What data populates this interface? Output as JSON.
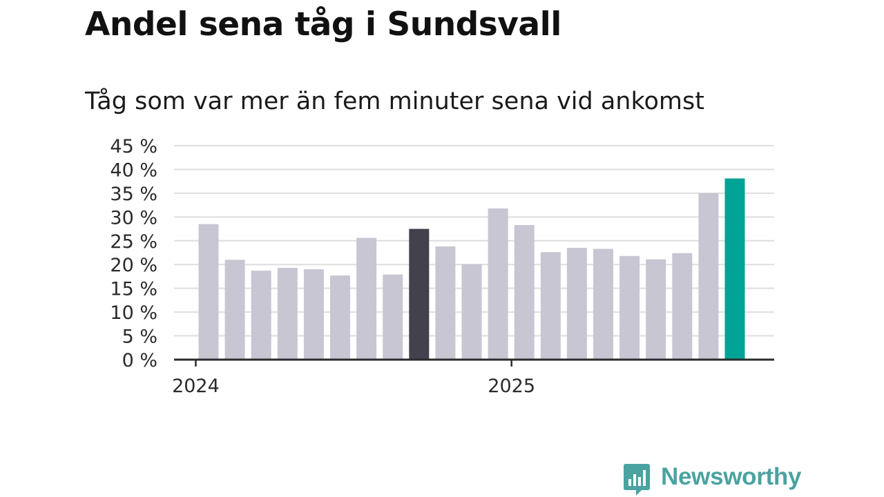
{
  "chart_data": {
    "type": "bar",
    "title": "Andel sena tåg i Sundsvall",
    "subtitle": "Tåg som var mer än fem minuter sena vid ankomst",
    "values": [
      28.5,
      21.0,
      18.7,
      19.3,
      19.0,
      17.7,
      25.6,
      17.9,
      27.5,
      23.8,
      20.1,
      31.8,
      28.3,
      22.6,
      23.5,
      23.3,
      21.8,
      21.1,
      22.4,
      35.0,
      38.1
    ],
    "highlight": [
      {
        "index": 8,
        "color": "#42414d"
      },
      {
        "index": 20,
        "color": "#00a396"
      }
    ],
    "bar_color": "#c8c6d2",
    "ylim": [
      0,
      45
    ],
    "yticks": [
      {
        "value": 0,
        "label": "0 %"
      },
      {
        "value": 5,
        "label": "5 %"
      },
      {
        "value": 10,
        "label": "10 %"
      },
      {
        "value": 15,
        "label": "15 %"
      },
      {
        "value": 20,
        "label": "20 %"
      },
      {
        "value": 25,
        "label": "25 %"
      },
      {
        "value": 30,
        "label": "30 %"
      },
      {
        "value": 35,
        "label": "35 %"
      },
      {
        "value": 40,
        "label": "40 %"
      },
      {
        "value": 45,
        "label": "45 %"
      }
    ],
    "xticks": [
      {
        "position": -0.5,
        "label": "2024"
      },
      {
        "position": 11.5,
        "label": "2025"
      }
    ],
    "grid": true,
    "xlabel": "",
    "ylabel": ""
  },
  "brand": {
    "name": "Newsworthy",
    "color": "#4aa3a0"
  }
}
